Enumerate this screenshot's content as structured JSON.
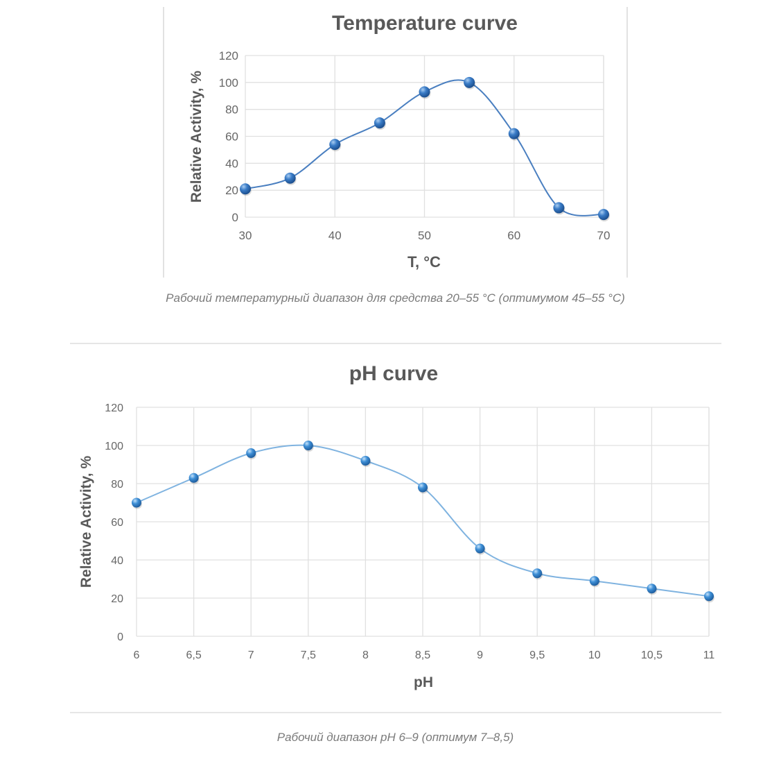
{
  "chart_data": [
    {
      "id": "temperature",
      "type": "line",
      "title": "Temperature curve",
      "xlabel": "T, °C",
      "ylabel": "Relative Activity, %",
      "x": [
        30,
        35,
        40,
        45,
        50,
        55,
        60,
        65,
        70
      ],
      "series": [
        {
          "name": "Relative Activity",
          "values": [
            21,
            29,
            54,
            70,
            93,
            100,
            62,
            7,
            2
          ]
        }
      ],
      "xlim": [
        30,
        70
      ],
      "ylim": [
        0,
        120
      ],
      "xticks": [
        "30",
        "40",
        "50",
        "60",
        "70"
      ],
      "xtick_values": [
        30,
        40,
        50,
        60,
        70
      ],
      "yticks": [
        "0",
        "20",
        "40",
        "60",
        "80",
        "100",
        "120"
      ],
      "ytick_values": [
        0,
        20,
        40,
        60,
        80,
        100,
        120
      ],
      "grid": true,
      "smooth": true,
      "legend": "none",
      "line_color": "#4a7fc0",
      "marker_color": "#2f6db5"
    },
    {
      "id": "ph",
      "type": "line",
      "title": "pH curve",
      "xlabel": "pH",
      "ylabel": "Relative Activity, %",
      "x": [
        6,
        6.5,
        7,
        7.5,
        8,
        8.5,
        9,
        9.5,
        10,
        10.5,
        11
      ],
      "series": [
        {
          "name": "Relative Activity",
          "values": [
            70,
            83,
            96,
            100,
            92,
            78,
            46,
            33,
            29,
            25,
            21
          ]
        }
      ],
      "xlim": [
        6,
        11
      ],
      "ylim": [
        0,
        120
      ],
      "xticks": [
        "6",
        "6,5",
        "7",
        "7,5",
        "8",
        "8,5",
        "9",
        "9,5",
        "10",
        "10,5",
        "11"
      ],
      "xtick_values": [
        6,
        6.5,
        7,
        7.5,
        8,
        8.5,
        9,
        9.5,
        10,
        10.5,
        11
      ],
      "yticks": [
        "0",
        "20",
        "40",
        "60",
        "80",
        "100",
        "120"
      ],
      "ytick_values": [
        0,
        20,
        40,
        60,
        80,
        100,
        120
      ],
      "grid": true,
      "smooth": true,
      "legend": "none",
      "line_color": "#7fb3e0",
      "marker_color": "#3a88cc"
    }
  ],
  "captions": {
    "temperature": "Рабочий температурный диапазон для средства 20–55 °C (оптимумом 45–55 °C)",
    "ph": "Рабочий диапазон pH 6–9 (оптимум 7–8,5)"
  }
}
